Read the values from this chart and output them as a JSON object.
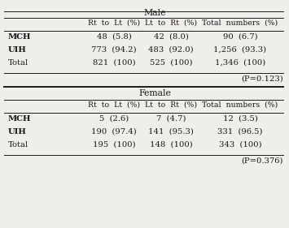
{
  "male_header": "Male",
  "female_header": "Female",
  "col_headers": [
    "Rt  to  Lt  (%)",
    "Lt  to  Rt  (%)",
    "Total  numbers  (%)"
  ],
  "male_rows": [
    [
      "MCH",
      "48  (5.8)",
      "42  (8.0)",
      "90  (6.7)"
    ],
    [
      "UIH",
      "773  (94.2)",
      "483  (92.0)",
      "1,256  (93.3)"
    ],
    [
      "Total",
      "821  (100)",
      "525  (100)",
      "1,346  (100)"
    ]
  ],
  "male_pval": "(P=0.123)",
  "female_rows": [
    [
      "MCH",
      "5  (2.6)",
      "7  (4.7)",
      "12  (3.5)"
    ],
    [
      "UIH",
      "190  (97.4)",
      "141  (95.3)",
      "331  (96.5)"
    ],
    [
      "Total",
      "195  (100)",
      "148  (100)",
      "343  (100)"
    ]
  ],
  "female_pval": "(P=0.376)",
  "bg_color": "#f0eeea",
  "text_color": "#1a1a1a",
  "font_size": 7.2,
  "header_font_size": 7.8
}
